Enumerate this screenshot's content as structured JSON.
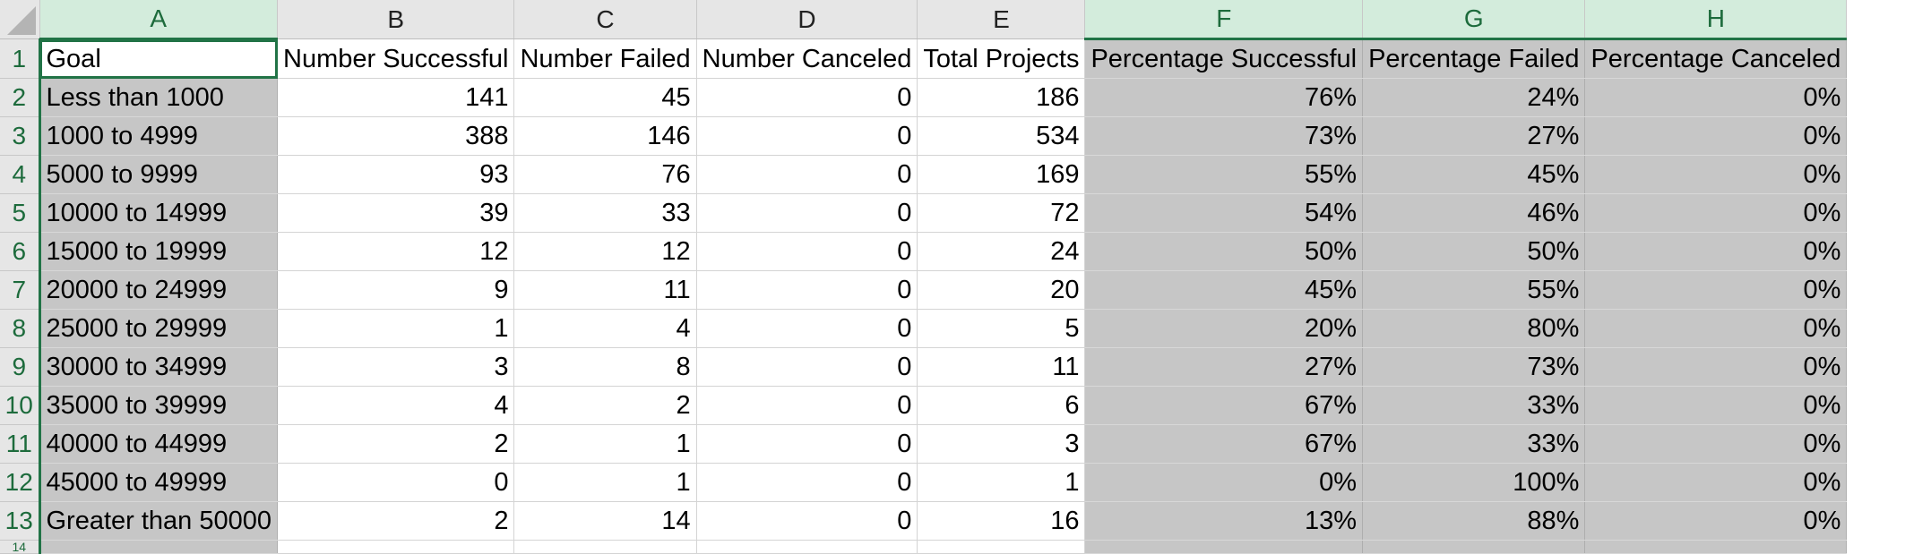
{
  "spreadsheet": {
    "columns": [
      "A",
      "B",
      "C",
      "D",
      "E",
      "F",
      "G",
      "H"
    ],
    "header": [
      "Goal",
      "Number Successful",
      "Number Failed",
      "Number Canceled",
      "Total Projects",
      "Percentage Successful",
      "Percentage Failed",
      "Percentage Canceled"
    ],
    "rows": [
      {
        "num": "2",
        "cells": [
          "Less than 1000",
          "141",
          "45",
          "0",
          "186",
          "76%",
          "24%",
          "0%"
        ]
      },
      {
        "num": "3",
        "cells": [
          "1000 to 4999",
          "388",
          "146",
          "0",
          "534",
          "73%",
          "27%",
          "0%"
        ]
      },
      {
        "num": "4",
        "cells": [
          "5000 to 9999",
          "93",
          "76",
          "0",
          "169",
          "55%",
          "45%",
          "0%"
        ]
      },
      {
        "num": "5",
        "cells": [
          "10000 to 14999",
          "39",
          "33",
          "0",
          "72",
          "54%",
          "46%",
          "0%"
        ]
      },
      {
        "num": "6",
        "cells": [
          "15000 to 19999",
          "12",
          "12",
          "0",
          "24",
          "50%",
          "50%",
          "0%"
        ]
      },
      {
        "num": "7",
        "cells": [
          "20000 to 24999",
          "9",
          "11",
          "0",
          "20",
          "45%",
          "55%",
          "0%"
        ]
      },
      {
        "num": "8",
        "cells": [
          "25000 to 29999",
          "1",
          "4",
          "0",
          "5",
          "20%",
          "80%",
          "0%"
        ]
      },
      {
        "num": "9",
        "cells": [
          "30000 to 34999",
          "3",
          "8",
          "0",
          "11",
          "27%",
          "73%",
          "0%"
        ]
      },
      {
        "num": "10",
        "cells": [
          "35000 to 39999",
          "4",
          "2",
          "0",
          "6",
          "67%",
          "33%",
          "0%"
        ]
      },
      {
        "num": "11",
        "cells": [
          "40000 to 44999",
          "2",
          "1",
          "0",
          "3",
          "67%",
          "33%",
          "0%"
        ]
      },
      {
        "num": "12",
        "cells": [
          "45000 to 49999",
          "0",
          "1",
          "0",
          "1",
          "0%",
          "100%",
          "0%"
        ]
      },
      {
        "num": "13",
        "cells": [
          "Greater than 50000",
          "2",
          "14",
          "0",
          "16",
          "13%",
          "88%",
          "0%"
        ]
      }
    ],
    "header_row_num": "1",
    "partial_row_num": "14",
    "selected_columns": [
      "A",
      "F",
      "G",
      "H"
    ],
    "active_cell": "A1",
    "colors": {
      "accent": "#217346",
      "selection_fill": "#c6c6c6",
      "header_fill": "#e6e6e6",
      "selected_header_fill": "#d3ecdc"
    }
  }
}
